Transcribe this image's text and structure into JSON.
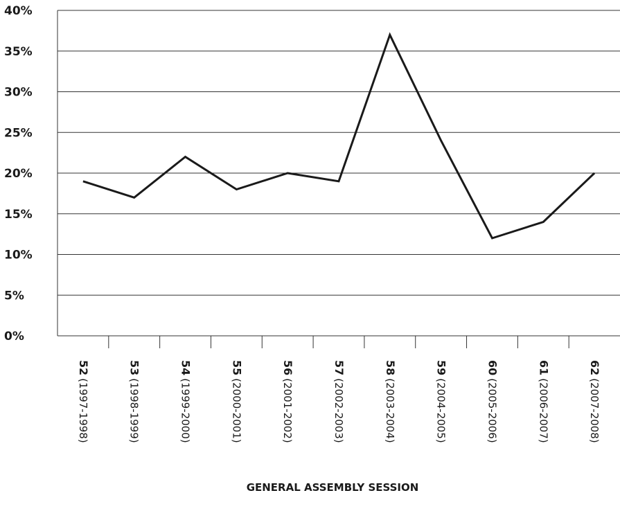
{
  "chart_data": {
    "type": "line",
    "title": "",
    "xlabel": "GENERAL ASSEMBLY SESSION",
    "ylabel": "",
    "ylim": [
      0,
      40
    ],
    "grid": "horizontal",
    "legend": "none",
    "line_color": "#1a1a1a",
    "yticks": [
      "0%",
      "5%",
      "10%",
      "15%",
      "20%",
      "25%",
      "30%",
      "35%",
      "40%"
    ],
    "categories": [
      {
        "session": "52",
        "years": "(1997-1998)"
      },
      {
        "session": "53",
        "years": "(1998-1999)"
      },
      {
        "session": "54",
        "years": "(1999-2000)"
      },
      {
        "session": "55",
        "years": "(2000-2001)"
      },
      {
        "session": "56",
        "years": "(2001-2002)"
      },
      {
        "session": "57",
        "years": "(2002-2003)"
      },
      {
        "session": "58",
        "years": "(2003-2004)"
      },
      {
        "session": "59",
        "years": "(2004-2005)"
      },
      {
        "session": "60",
        "years": "(2005-2006)"
      },
      {
        "session": "61",
        "years": "(2006-2007)"
      },
      {
        "session": "62",
        "years": "(2007-2008)"
      }
    ],
    "series": [
      {
        "values": [
          19,
          17,
          22,
          18,
          20,
          19,
          37,
          24,
          12,
          14,
          20
        ]
      }
    ]
  }
}
